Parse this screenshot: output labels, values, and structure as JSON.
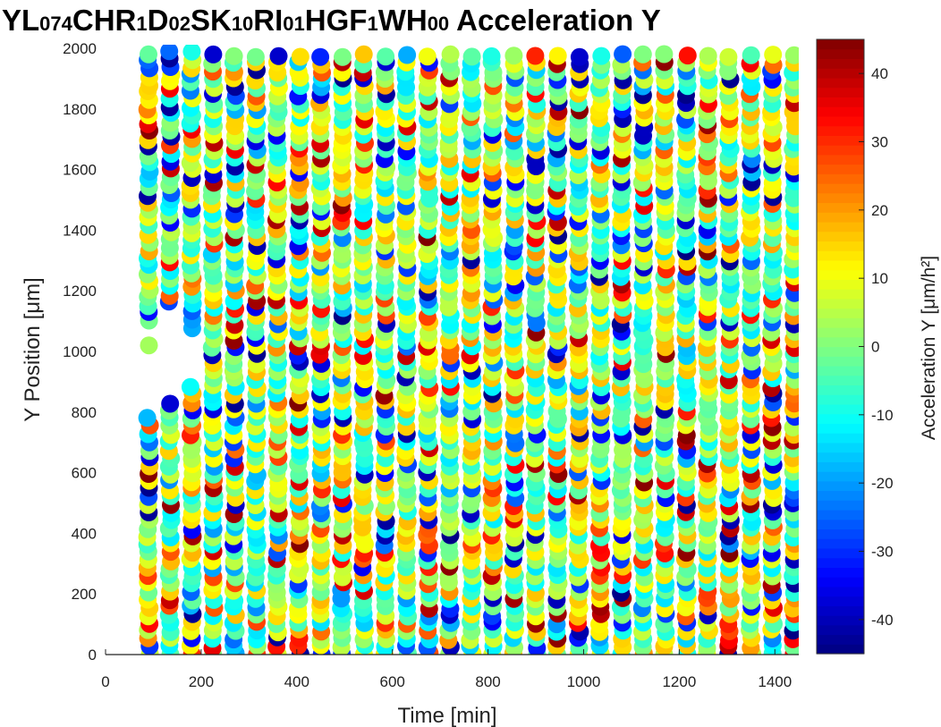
{
  "title_parts": [
    {
      "text": "YL",
      "sub": false
    },
    {
      "text": "074",
      "sub": true
    },
    {
      "text": "CHR",
      "sub": false
    },
    {
      "text": "1",
      "sub": true
    },
    {
      "text": "D",
      "sub": false
    },
    {
      "text": "02",
      "sub": true
    },
    {
      "text": "SK",
      "sub": false
    },
    {
      "text": "10",
      "sub": true
    },
    {
      "text": "RI",
      "sub": false
    },
    {
      "text": "01",
      "sub": true
    },
    {
      "text": "HGF",
      "sub": false
    },
    {
      "text": "1",
      "sub": true
    },
    {
      "text": "WH",
      "sub": false
    },
    {
      "text": "00",
      "sub": true
    },
    {
      "text": " Acceleration Y",
      "sub": false
    }
  ],
  "chart_data": {
    "type": "scatter",
    "xlabel": "Time [min]",
    "ylabel": "Y Position [μm]",
    "xlim": [
      0,
      1450
    ],
    "ylim": [
      0,
      2000
    ],
    "x_ticks": [
      0,
      200,
      400,
      600,
      800,
      1000,
      1200,
      1400
    ],
    "y_ticks": [
      0,
      200,
      400,
      600,
      800,
      1000,
      1200,
      1400,
      1600,
      1800,
      2000
    ],
    "time_columns": [
      90,
      135,
      180,
      225,
      270,
      315,
      360,
      405,
      450,
      495,
      540,
      585,
      630,
      675,
      720,
      765,
      810,
      855,
      900,
      945,
      990,
      1035,
      1080,
      1125,
      1170,
      1215,
      1260,
      1305,
      1350,
      1395,
      1440
    ],
    "column_y_ranges": [
      {
        "x": 90,
        "ranges": [
          [
            0,
            800
          ],
          [
            1020,
            1020
          ],
          [
            1100,
            2000
          ]
        ]
      },
      {
        "x": 135,
        "ranges": [
          [
            0,
            840
          ],
          [
            1160,
            2000
          ]
        ]
      },
      {
        "x": 180,
        "ranges": [
          [
            0,
            890
          ],
          [
            1080,
            2000
          ]
        ]
      },
      {
        "x": 225,
        "ranges": [
          [
            0,
            2000
          ]
        ]
      }
    ],
    "color_variable": "Acceleration Y",
    "colorbar": {
      "label": "Acceleration Y [μm/h²]",
      "range": [
        -45,
        45
      ],
      "ticks": [
        -40,
        -30,
        -20,
        -10,
        0,
        10,
        20,
        30,
        40
      ],
      "colormap": "jet"
    },
    "grid": false
  }
}
